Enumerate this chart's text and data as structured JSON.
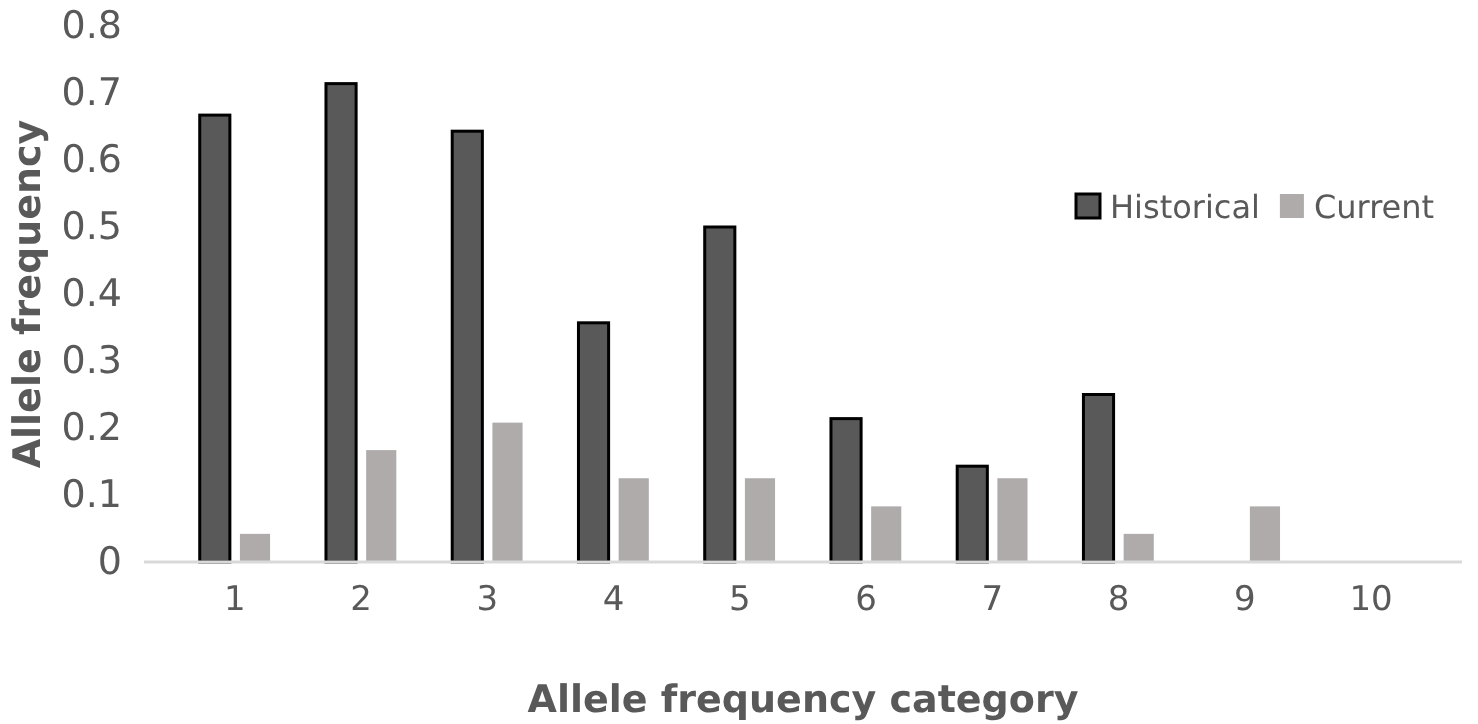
{
  "chart_data": {
    "type": "bar",
    "xlabel": "Allele frequency category",
    "ylabel": "Allele frequency",
    "categories": [
      "1",
      "2",
      "3",
      "4",
      "5",
      "6",
      "7",
      "8",
      "9",
      "10"
    ],
    "series": [
      {
        "name": "Historical",
        "color": "#595959",
        "values": [
          0.667,
          0.714,
          0.643,
          0.357,
          0.5,
          0.214,
          0.143,
          0.25,
          0,
          0
        ]
      },
      {
        "name": "Current",
        "color": "#afabab",
        "values": [
          0.042,
          0.167,
          0.208,
          0.125,
          0.125,
          0.083,
          0.125,
          0.042,
          0.083,
          0
        ]
      }
    ],
    "ylim": [
      0,
      0.8
    ],
    "yticks": [
      0,
      0.1,
      0.2,
      0.3,
      0.4,
      0.5,
      0.6,
      0.7,
      0.8
    ],
    "grid": false,
    "legend": "right"
  }
}
